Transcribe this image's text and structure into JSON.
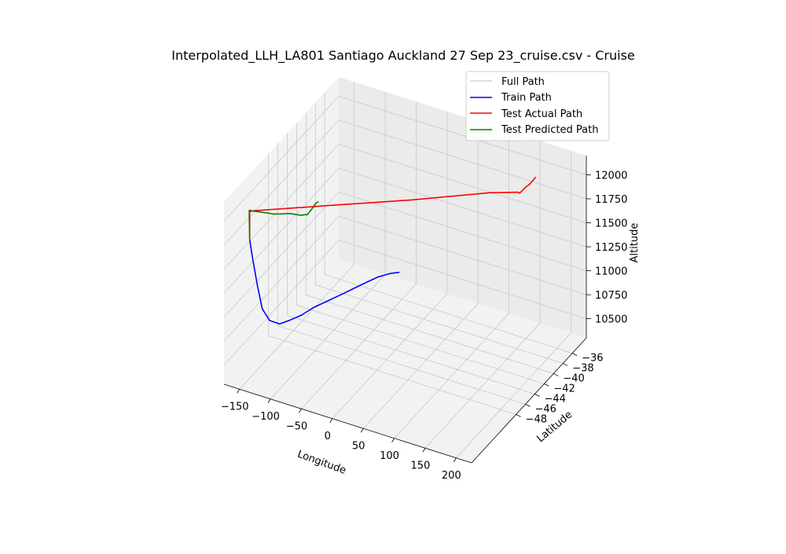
{
  "chart_data": {
    "type": "line3d",
    "title": "Interpolated_LLH_LA801 Santiago Auckland 27 Sep 23_cruise.csv - Cruise",
    "xlabel": "Longitude",
    "ylabel": "Latitude",
    "zlabel": "Altitude",
    "x_ticks": [
      -150,
      -100,
      -50,
      0,
      50,
      100,
      150,
      200
    ],
    "y_ticks": [
      -48,
      -46,
      -44,
      -42,
      -40,
      -38,
      -36
    ],
    "z_ticks": [
      10500,
      10750,
      11000,
      11250,
      11500,
      11750,
      12000
    ],
    "x_tick_labels": [
      "−150",
      "−100",
      "−50",
      "0",
      "50",
      "100",
      "150",
      "200"
    ],
    "y_tick_labels": [
      "−48",
      "−46",
      "−44",
      "−42",
      "−40",
      "−38",
      "−36"
    ],
    "z_tick_labels": [
      "10500",
      "10750",
      "11000",
      "11250",
      "11500",
      "11750",
      "12000"
    ],
    "grid": true,
    "legend_position": "top-right",
    "legend": [
      {
        "name": "Full Path",
        "color": "#d3d3d3"
      },
      {
        "name": "Train Path",
        "color": "#0000ff"
      },
      {
        "name": "Test Actual Path",
        "color": "#ff0000"
      },
      {
        "name": "Test Predicted Path",
        "color": "#008000"
      }
    ],
    "series": [
      {
        "name": "Train Path",
        "color": "#0000ff",
        "points": [
          [
            -73,
            -33.5,
            10400
          ],
          [
            -85,
            -33.8,
            10380
          ],
          [
            -100,
            -34.5,
            10350
          ],
          [
            -115,
            -36,
            10320
          ],
          [
            -130,
            -38,
            10300
          ],
          [
            -140,
            -40,
            10310
          ],
          [
            -148,
            -42,
            10330
          ],
          [
            -152,
            -44,
            10350
          ],
          [
            -155,
            -46,
            10400
          ],
          [
            -157,
            -48,
            10460
          ],
          [
            -158,
            -50,
            10600
          ],
          [
            -158.5,
            -51.5,
            10800
          ],
          [
            -159,
            -52.5,
            11100
          ],
          [
            -159.5,
            -53.5,
            11450
          ],
          [
            -160,
            -54,
            11650
          ]
        ]
      },
      {
        "name": "Test Actual Path",
        "color": "#ff0000",
        "points": [
          [
            -160,
            -54,
            11650
          ],
          [
            -160,
            -54,
            11900
          ],
          [
            -158,
            -54.3,
            11950
          ],
          [
            -155,
            -54.8,
            12000
          ],
          [
            -150,
            -55.3,
            12050
          ],
          [
            -145,
            -55.8,
            12080
          ],
          [
            -140,
            -56.4,
            12120
          ],
          [
            -50,
            -50.5,
            12050
          ],
          [
            30,
            -44.5,
            11950
          ],
          [
            110,
            -38.3,
            11860
          ],
          [
            140,
            -36.3,
            11820
          ],
          [
            145,
            -36.7,
            11840
          ],
          [
            150,
            -36.1,
            11880
          ],
          [
            155,
            -35.8,
            11910
          ],
          [
            160,
            -35.2,
            11960
          ]
        ]
      },
      {
        "name": "Test Predicted Path",
        "color": "#008000",
        "points": [
          [
            -160,
            -54,
            11650
          ],
          [
            -160,
            -54.1,
            11920
          ],
          [
            -156,
            -54.5,
            11980
          ],
          [
            -150,
            -55,
            12020
          ],
          [
            -142,
            -56,
            12090
          ],
          [
            -138,
            -56.5,
            12130
          ],
          [
            -130,
            -55.5,
            12080
          ],
          [
            -120,
            -54,
            12000
          ],
          [
            -110,
            -52,
            11920
          ],
          [
            -100,
            -51,
            11870
          ],
          [
            -95,
            -50.5,
            11860
          ],
          [
            -92,
            -50.7,
            11875
          ],
          [
            -88,
            -50.2,
            11920
          ],
          [
            -85,
            -49.8,
            11960
          ],
          [
            -82,
            -49.6,
            11975
          ]
        ]
      }
    ]
  }
}
